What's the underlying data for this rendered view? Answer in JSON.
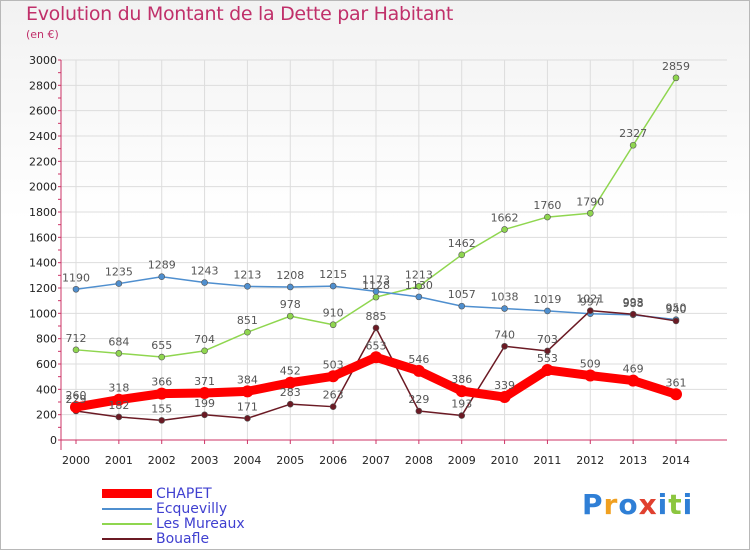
{
  "title": "Evolution du Montant de la Dette par Habitant",
  "subtitle": "(en €)",
  "logo": {
    "text": "Proxiti",
    "colors": [
      "#2f7fd6",
      "#f0a020",
      "#2f7fd6",
      "#e0402f",
      "#2f7fd6",
      "#8cc63f",
      "#2f7fd6"
    ]
  },
  "chart_data": {
    "type": "line",
    "x": [
      "2000",
      "2001",
      "2002",
      "2003",
      "2004",
      "2005",
      "2006",
      "2007",
      "2008",
      "2009",
      "2010",
      "2011",
      "2012",
      "2013",
      "2014"
    ],
    "ylim": [
      0,
      3000
    ],
    "yticks": [
      "0",
      "200",
      "400",
      "600",
      "800",
      "1000",
      "1200",
      "1400",
      "1600",
      "1800",
      "2000",
      "2200",
      "2400",
      "2600",
      "2800",
      "3000"
    ],
    "grid": true,
    "legend_position": "bottom-left",
    "series": [
      {
        "name": "CHAPET",
        "color": "#ff0000",
        "values": [
          260,
          318,
          366,
          371,
          384,
          452,
          503,
          653,
          546,
          386,
          339,
          553,
          509,
          469,
          361
        ],
        "labels": [
          "260",
          "318",
          "366",
          "371",
          "384",
          "452",
          "503",
          "653",
          "546",
          "386",
          "339",
          "553",
          "509",
          "469",
          "361"
        ]
      },
      {
        "name": "Ecquevilly",
        "color": "#4f8fcf",
        "values": [
          1190,
          1235,
          1289,
          1243,
          1213,
          1208,
          1215,
          1173,
          1130,
          1057,
          1038,
          1019,
          997,
          988,
          950
        ],
        "labels": [
          "1190",
          "1235",
          "1289",
          "1243",
          "1213",
          "1208",
          "1215",
          "1173",
          "1130",
          "1057",
          "1038",
          "1019",
          "997",
          "988",
          "950"
        ]
      },
      {
        "name": "Les Mureaux",
        "color": "#8fd64f",
        "values": [
          712,
          684,
          655,
          704,
          851,
          978,
          910,
          1128,
          1213,
          1462,
          1662,
          1760,
          1790,
          2327,
          2859
        ],
        "labels": [
          "712",
          "684",
          "655",
          "704",
          "851",
          "978",
          "910",
          "1128",
          "1213",
          "1462",
          "1662",
          "1760",
          "1790",
          "2327",
          "2859"
        ]
      },
      {
        "name": "Bouafle",
        "color": "#6b1a24",
        "values": [
          229,
          182,
          155,
          199,
          171,
          283,
          263,
          885,
          229,
          193,
          740,
          703,
          1021,
          993,
          940
        ],
        "labels": [
          "229",
          "182",
          "155",
          "199",
          "171",
          "283",
          "263",
          "885",
          "229",
          "193",
          "740",
          "703",
          "1021",
          "993",
          "940"
        ]
      }
    ]
  }
}
